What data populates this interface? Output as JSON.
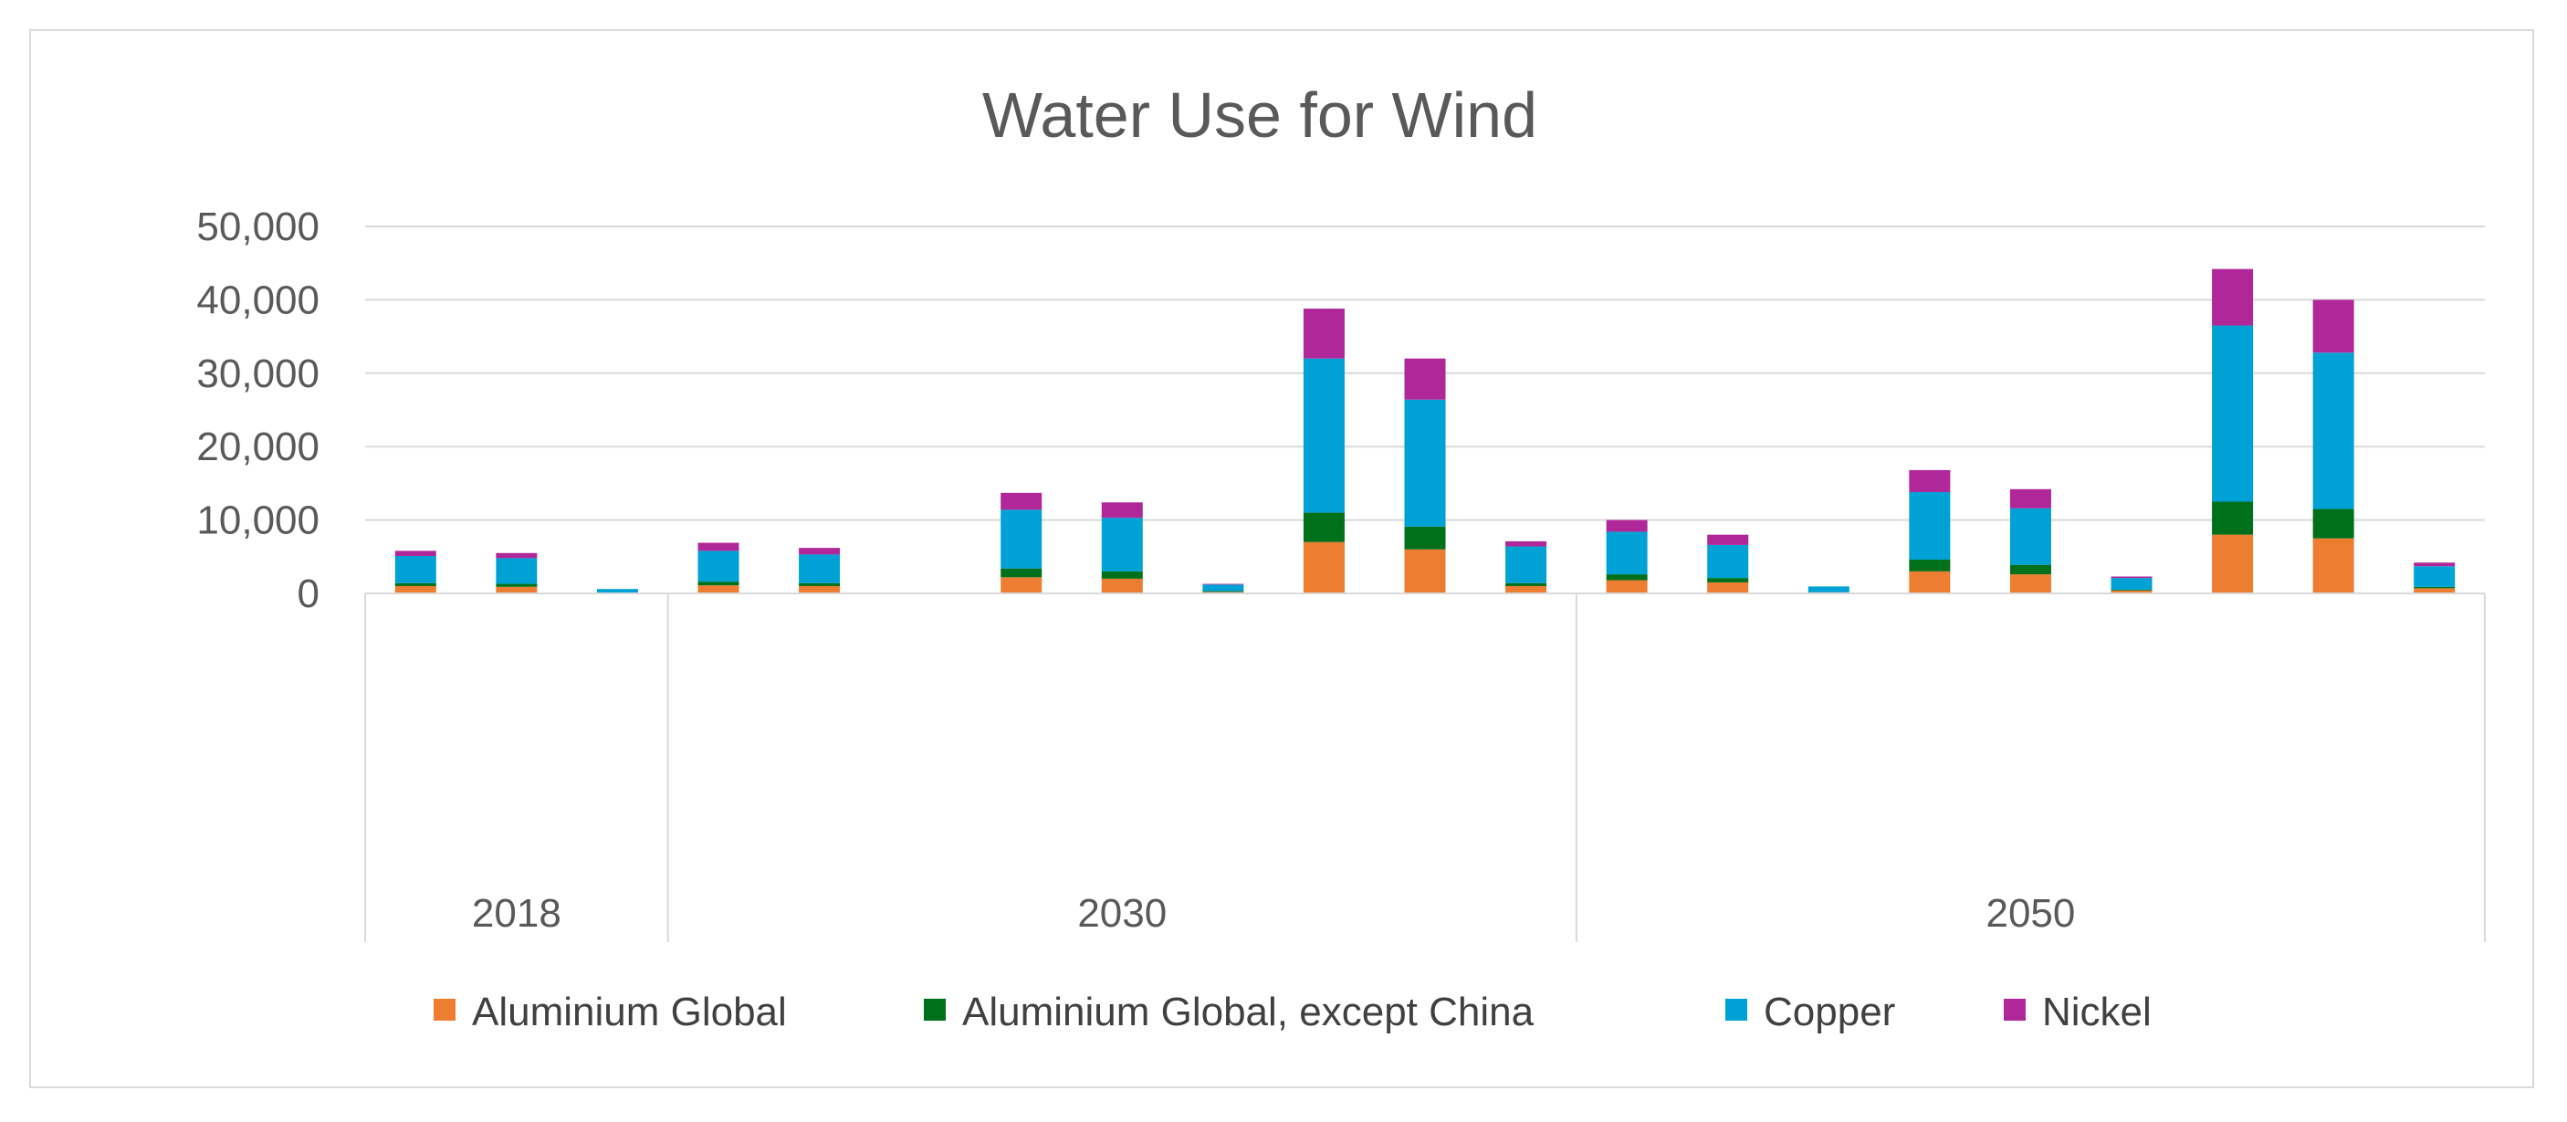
{
  "chart_data": {
    "type": "bar",
    "stacked": true,
    "title": "Water Use for Wind",
    "xlabel": "",
    "ylabel": "",
    "ylim": [
      0,
      50000
    ],
    "y_ticks": [
      "0",
      "10,000",
      "20,000",
      "30,000",
      "40,000",
      "50,000"
    ],
    "y_tick_values": [
      0,
      10000,
      20000,
      30000,
      40000,
      50000
    ],
    "gridlines": true,
    "legend_position": "bottom",
    "groups": [
      {
        "label": "2018",
        "count": 3
      },
      {
        "label": "2030",
        "count": 9
      },
      {
        "label": "2050",
        "count": 9
      }
    ],
    "categories": [
      "",
      "",
      "",
      "",
      "",
      "",
      "",
      "",
      "",
      "",
      "",
      "",
      "",
      "",
      "",
      "",
      "",
      "",
      "",
      "",
      ""
    ],
    "series": [
      {
        "name": "Aluminium Global",
        "color": "#ed7d31",
        "values": [
          1000,
          900,
          100,
          1100,
          1000,
          0,
          2200,
          2000,
          200,
          7000,
          6000,
          1000,
          1800,
          1500,
          150,
          3000,
          2600,
          400,
          8000,
          7500,
          700
        ]
      },
      {
        "name": "Aluminium Global, except China",
        "color": "#00701a",
        "values": [
          400,
          400,
          0,
          500,
          400,
          0,
          1200,
          1000,
          100,
          4000,
          3100,
          400,
          800,
          600,
          0,
          1600,
          1300,
          100,
          4500,
          4000,
          200
        ]
      },
      {
        "name": "Copper",
        "color": "#00a2d6",
        "values": [
          3700,
          3500,
          500,
          4200,
          3900,
          0,
          8000,
          7300,
          900,
          21000,
          17300,
          5000,
          5800,
          4500,
          800,
          9200,
          7700,
          1600,
          24000,
          21300,
          2800
        ]
      },
      {
        "name": "Nickel",
        "color": "#b0279a",
        "values": [
          700,
          700,
          0,
          1100,
          900,
          0,
          2300,
          2100,
          100,
          6800,
          5600,
          700,
          1600,
          1400,
          0,
          3000,
          2600,
          200,
          7700,
          7200,
          500
        ]
      }
    ]
  }
}
